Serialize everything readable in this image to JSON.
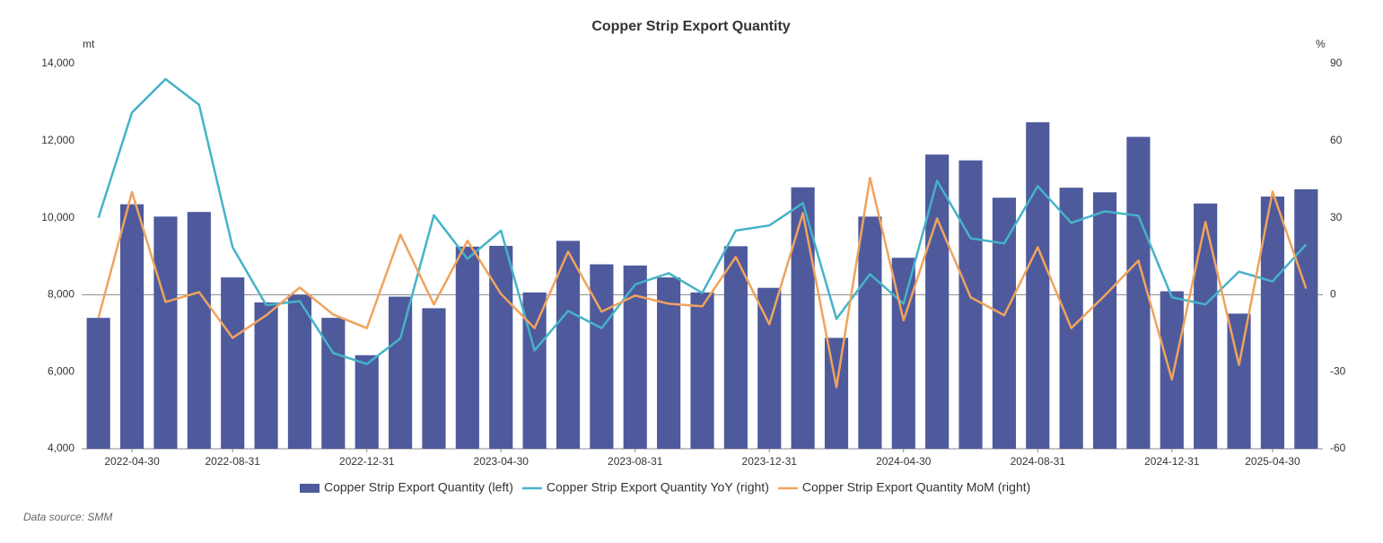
{
  "chart_data": {
    "type": "bar_line",
    "title": "Copper Strip Export Quantity",
    "y_unit": "mt",
    "y2_unit": "%",
    "source": "Data source:  SMM",
    "categories": [
      null,
      "2022-04-30",
      null,
      null,
      "2022-08-31",
      null,
      null,
      null,
      "2022-12-31",
      null,
      null,
      null,
      "2023-04-30",
      null,
      null,
      null,
      "2023-08-31",
      null,
      null,
      null,
      "2023-12-31",
      null,
      null,
      null,
      "2024-04-30",
      null,
      null,
      null,
      "2024-08-31",
      null,
      null,
      null,
      "2024-12-31",
      null,
      null,
      "2025-04-30",
      null
    ],
    "series": [
      {
        "name": "Copper Strip Export Quantity (left)",
        "type": "bar",
        "color": "#4e5a9c",
        "values": [
          7400,
          10350,
          10030,
          10150,
          8450,
          7800,
          8000,
          7400,
          6430,
          7950,
          7650,
          9250,
          9270,
          8060,
          9400,
          8790,
          8760,
          8450,
          8060,
          9260,
          8180,
          10790,
          6880,
          10030,
          8960,
          11640,
          11490,
          10520,
          12480,
          10780,
          10660,
          12100,
          8090,
          10370,
          7510,
          10550,
          10740
        ]
      },
      {
        "name": "Copper Strip Export Quantity YoY (right)",
        "type": "line",
        "axis": "y2",
        "color": "#45b3c8",
        "values": [
          30,
          71,
          84,
          74,
          18.5,
          -4,
          -2.5,
          -22.7,
          -27,
          -17,
          31,
          14,
          25,
          -21.7,
          -6.3,
          -13,
          4,
          8.4,
          0.7,
          25,
          27,
          35.7,
          -9.4,
          8,
          -3.5,
          44.4,
          22,
          20,
          42.3,
          28,
          32.5,
          30.8,
          -1,
          -3.8,
          9,
          5.2,
          19.6
        ]
      },
      {
        "name": "Copper Strip Export Quantity MoM (right)",
        "type": "line",
        "axis": "y2",
        "color": "#f0a35e",
        "values": [
          -9,
          40,
          -2.8,
          1,
          -16.8,
          -8,
          2.8,
          -7.7,
          -13,
          23.4,
          -3.8,
          21,
          0.3,
          -13,
          16.8,
          -6.6,
          -0.3,
          -3.5,
          -4.5,
          14.7,
          -11.5,
          31.8,
          -36,
          45.5,
          -10,
          29.7,
          -1,
          -8,
          18.5,
          -13,
          -0.3,
          13.3,
          -33,
          28.3,
          -27.3,
          40.2,
          2.4
        ]
      }
    ],
    "ylim": [
      4000,
      14000
    ],
    "yticks": [
      {
        "value": 4000,
        "label": "4,000"
      },
      {
        "value": 6000,
        "label": "6,000"
      },
      {
        "value": 8000,
        "label": "8,000"
      },
      {
        "value": 10000,
        "label": "10,000"
      },
      {
        "value": 12000,
        "label": "12,000"
      },
      {
        "value": 14000,
        "label": "14,000"
      }
    ],
    "y2lim": [
      -60,
      90
    ],
    "y2ticks": [
      -60,
      -30,
      0,
      30,
      60,
      90
    ],
    "zero_line_y2": true,
    "legend": "bottom"
  }
}
